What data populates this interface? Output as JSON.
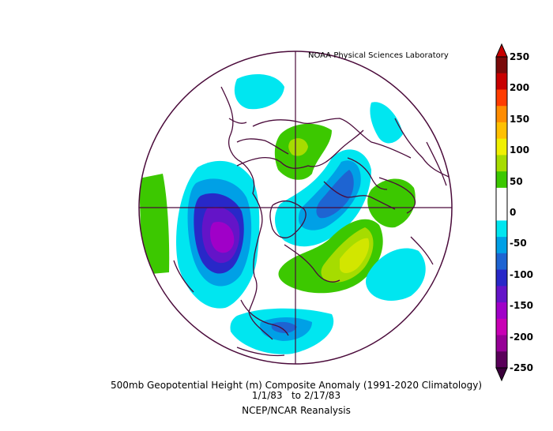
{
  "credit": "NOAA Physical Sciences Laboratory",
  "title": "500mb Geopotential Height (m) Composite Anomaly (1991-2020 Climatology)",
  "date_range": "1/1/83   to 2/17/83",
  "source": "NCEP/NCAR Reanalysis",
  "colorbar": {
    "labels": [
      "250",
      "200",
      "150",
      "100",
      "50",
      "0",
      "-50",
      "-100",
      "-150",
      "-200",
      "-250"
    ],
    "colors": [
      "#7a0a0a",
      "#c80000",
      "#ff3c00",
      "#ff8c00",
      "#ffc000",
      "#f0f000",
      "#a6dc00",
      "#3cc800",
      "#ffffff",
      "#ffffff",
      "#00e6f0",
      "#00a0e6",
      "#1e64d2",
      "#2828c8",
      "#6414c8",
      "#a000c8",
      "#c800b4",
      "#960096",
      "#5a005a"
    ]
  },
  "map": {
    "projection": "north-polar-stereographic",
    "anomaly_regions": [
      {
        "name": "pacific-trough",
        "level": -200,
        "color": "#a000c8"
      },
      {
        "name": "pacific-trough-ring-150",
        "level": -150,
        "color": "#6414c8"
      },
      {
        "name": "pacific-trough-ring-100",
        "level": -100,
        "color": "#1e64d2"
      },
      {
        "name": "pacific-trough-ring-50",
        "level": -50,
        "color": "#00e6f0"
      },
      {
        "name": "atlantic-ridge",
        "level": 100,
        "color": "#f0f000"
      },
      {
        "name": "atlantic-ridge-ring-50",
        "level": 50,
        "color": "#a6dc00"
      },
      {
        "name": "siberia-positive",
        "level": 50,
        "color": "#3cc800"
      },
      {
        "name": "europe-positive",
        "level": 50,
        "color": "#3cc800"
      },
      {
        "name": "north-atlantic-negative",
        "level": -100,
        "color": "#1e64d2"
      },
      {
        "name": "gulf-negative",
        "level": -50,
        "color": "#00a0e6"
      }
    ]
  }
}
